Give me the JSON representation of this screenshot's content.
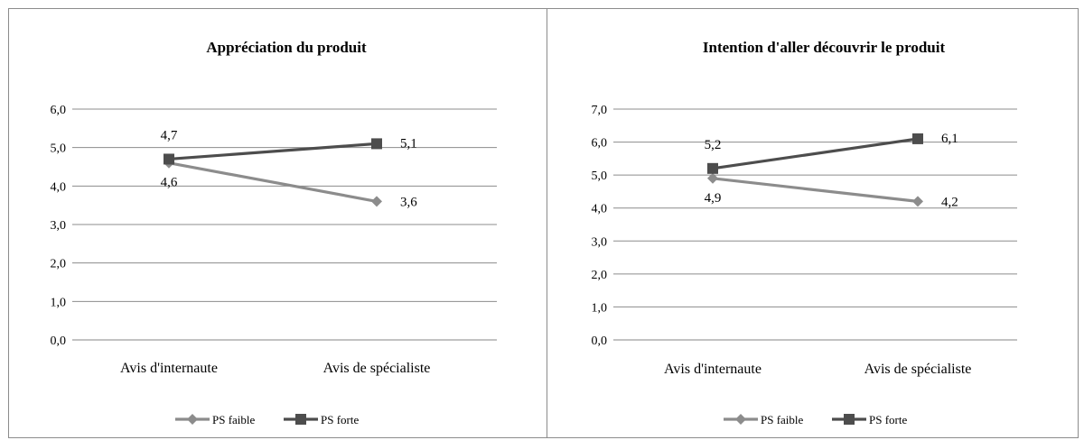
{
  "chart_data": [
    {
      "type": "line",
      "title": "Appréciation du produit",
      "categories": [
        "Avis d'internaute",
        "Avis de spécialiste"
      ],
      "ylim": [
        0,
        6
      ],
      "yticks": [
        "0,0",
        "1,0",
        "2,0",
        "3,0",
        "4,0",
        "5,0",
        "6,0"
      ],
      "grid": true,
      "legend": "bottom",
      "series": [
        {
          "name": "PS faible",
          "values": [
            4.6,
            3.6
          ],
          "labels": [
            "4,6",
            "3,6"
          ],
          "color": "#8c8c8c",
          "marker": "diamond"
        },
        {
          "name": "PS forte",
          "values": [
            4.7,
            5.1
          ],
          "labels": [
            "4,7",
            "5,1"
          ],
          "color": "#4d4d4d",
          "marker": "square"
        }
      ]
    },
    {
      "type": "line",
      "title": "Intention d'aller découvrir le produit",
      "categories": [
        "Avis d'internaute",
        "Avis de spécialiste"
      ],
      "ylim": [
        0,
        7
      ],
      "yticks": [
        "0,0",
        "1,0",
        "2,0",
        "3,0",
        "4,0",
        "5,0",
        "6,0",
        "7,0"
      ],
      "grid": true,
      "legend": "bottom",
      "series": [
        {
          "name": "PS faible",
          "values": [
            4.9,
            4.2
          ],
          "labels": [
            "4,9",
            "4,2"
          ],
          "color": "#8c8c8c",
          "marker": "diamond"
        },
        {
          "name": "PS forte",
          "values": [
            5.2,
            6.1
          ],
          "labels": [
            "5,2",
            "6,1"
          ],
          "color": "#4d4d4d",
          "marker": "square"
        }
      ]
    }
  ]
}
